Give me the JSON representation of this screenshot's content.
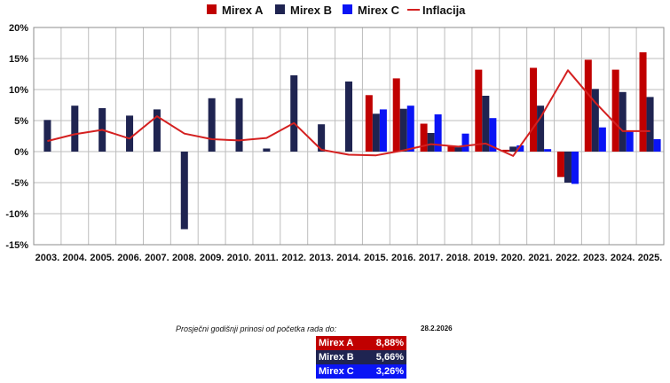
{
  "colors": {
    "mirex_a": "#c00000",
    "mirex_b": "#1f2451",
    "mirex_c": "#0a14f5",
    "inflacija": "#d42020",
    "grid": "#bdbdbd"
  },
  "chart_data": {
    "type": "bar",
    "categories": [
      "2003.",
      "2004.",
      "2005.",
      "2006.",
      "2007.",
      "2008.",
      "2009.",
      "2010.",
      "2011.",
      "2012.",
      "2013.",
      "2014.",
      "2015.",
      "2016.",
      "2017.",
      "2018.",
      "2019.",
      "2020.",
      "2021.",
      "2022.",
      "2023.",
      "2024.",
      "2025."
    ],
    "ylim": [
      -15,
      20
    ],
    "yticks": [
      "-15%",
      "-10%",
      "-5%",
      "0%",
      "5%",
      "10%",
      "15%",
      "20%"
    ],
    "legend_position": "top-center",
    "grid": true,
    "series": [
      {
        "name": "Mirex A",
        "type": "bar",
        "color_key": "mirex_a",
        "values": [
          null,
          null,
          null,
          null,
          null,
          null,
          null,
          null,
          null,
          null,
          null,
          null,
          9.1,
          11.8,
          4.5,
          1.0,
          13.2,
          0.3,
          13.5,
          -4.1,
          14.8,
          13.2,
          16.0
        ]
      },
      {
        "name": "Mirex B",
        "type": "bar",
        "color_key": "mirex_b",
        "values": [
          5.1,
          7.4,
          7.0,
          5.8,
          6.8,
          -12.5,
          8.6,
          8.6,
          0.5,
          12.3,
          4.4,
          11.3,
          6.1,
          6.9,
          3.0,
          0.7,
          9.0,
          0.8,
          7.4,
          -5.0,
          10.1,
          9.6,
          8.8
        ]
      },
      {
        "name": "Mirex C",
        "type": "bar",
        "color_key": "mirex_c",
        "values": [
          null,
          null,
          null,
          null,
          null,
          null,
          null,
          null,
          null,
          null,
          null,
          null,
          6.8,
          7.4,
          6.0,
          2.9,
          5.4,
          1.0,
          0.4,
          -5.2,
          3.9,
          3.3,
          2.0
        ]
      },
      {
        "name": "Inflacija",
        "type": "line",
        "color_key": "inflacija",
        "values": [
          1.7,
          2.8,
          3.5,
          2.1,
          5.7,
          2.9,
          2.0,
          1.8,
          2.2,
          4.6,
          0.3,
          -0.5,
          -0.6,
          0.2,
          1.2,
          0.8,
          1.3,
          -0.7,
          5.5,
          13.1,
          7.9,
          3.3,
          3.3
        ]
      }
    ]
  },
  "summary": {
    "caption": "Prosječni godišnji prinosi od početka rada do:",
    "date": "28.2.2026",
    "rows": [
      {
        "name": "Mirex A",
        "value": "8,88%",
        "color_key": "mirex_a"
      },
      {
        "name": "Mirex B",
        "value": "5,66%",
        "color_key": "mirex_b"
      },
      {
        "name": "Mirex C",
        "value": "3,26%",
        "color_key": "mirex_c"
      }
    ]
  }
}
